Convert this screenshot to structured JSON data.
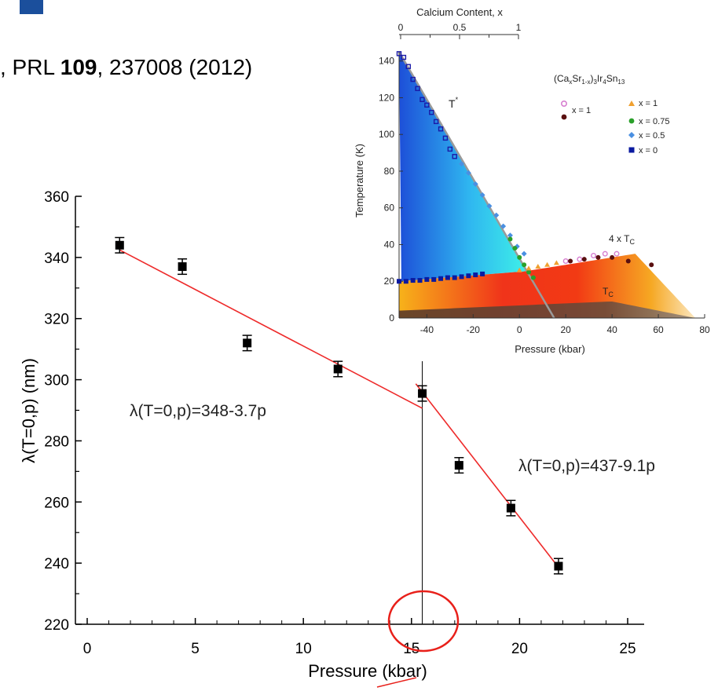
{
  "citation": {
    "prefix": ", PRL ",
    "volume": "109",
    "rest": ", 237008 (2012)"
  },
  "chart_data": [
    {
      "type": "scatter",
      "title": "",
      "xlabel": "Pressure (kbar)",
      "ylabel": "λ(T=0,p) (nm)",
      "xlim": [
        0,
        25
      ],
      "ylim": [
        220,
        360
      ],
      "xticks": [
        "0",
        "5",
        "10",
        "15",
        "20",
        "25"
      ],
      "yticks": [
        "220",
        "240",
        "260",
        "280",
        "300",
        "320",
        "340",
        "360"
      ],
      "series": [
        {
          "x": [
            1.5,
            4.4,
            7.4,
            11.6,
            15.5,
            17.2,
            19.6,
            21.8
          ],
          "y": [
            344,
            337,
            312,
            303.5,
            295.5,
            272,
            258,
            239
          ],
          "yerr": [
            2,
            2,
            2,
            2,
            2,
            2,
            2,
            2
          ]
        }
      ],
      "fits": [
        {
          "label": "λ(T=0,p)=348-3.7p",
          "x_from": 1.5,
          "x_to": 15.5,
          "intercept": 348,
          "slope": -3.7
        },
        {
          "label": "λ(T=0,p)=437-9.1p",
          "x_from": 15.2,
          "x_to": 21.8,
          "intercept": 437,
          "slope": -9.1
        }
      ],
      "vline_x": 15.5,
      "colors": {
        "points": "#000000",
        "fit": "#ee2a2a",
        "circle": "#e8201a"
      }
    },
    {
      "type": "scatter",
      "xlabel": "Pressure (kbar)",
      "ylabel": "Temperature (K)",
      "top_axis_label": "Calcium Content, x",
      "xlim": [
        -52,
        80
      ],
      "ylim": [
        0,
        145
      ],
      "xticks": [
        "-40",
        "-20",
        "0",
        "20",
        "40",
        "60",
        "80"
      ],
      "yticks": [
        "0",
        "20",
        "40",
        "60",
        "80",
        "100",
        "120",
        "140"
      ],
      "top_ticks": [
        "0",
        "0.5",
        "1"
      ],
      "annotations": {
        "tstar": "T",
        "tstar_sup": "*",
        "tc4": "4 x T",
        "tc4_sub": "C",
        "tc": "T",
        "tc_sub": "C"
      },
      "legend": {
        "compound": {
          "p1": "(Ca",
          "s1": "x",
          "p2": "Sr",
          "s2": "1-x",
          "p3": ")",
          "s3": "3",
          "p4": "Ir",
          "s4": "4",
          "p5": "Sn",
          "s5": "13"
        },
        "left": [
          {
            "label": "x = 1",
            "color": "#d77fd0",
            "marker": "open-circle"
          },
          {
            "label": "",
            "color": "#5a1010",
            "marker": "circle"
          }
        ],
        "right": [
          {
            "label": "x = 1",
            "color": "#f0a030",
            "marker": "triangle"
          },
          {
            "label": "x = 0.75",
            "color": "#2aa02a",
            "marker": "circle"
          },
          {
            "label": "x = 0.5",
            "color": "#4a90e2",
            "marker": "diamond"
          },
          {
            "label": "x = 0",
            "color": "#0a1aa0",
            "marker": "square"
          }
        ]
      },
      "series": [
        {
          "name": "x = 0",
          "color": "#1a1aa8",
          "marker": "open-square",
          "x": [
            -52,
            -50,
            -48,
            -46,
            -44,
            -42,
            -40,
            -38,
            -36,
            -34,
            -32,
            -30,
            -28
          ],
          "y": [
            144,
            142,
            137,
            130,
            125,
            119,
            116,
            112,
            107,
            103,
            98,
            92,
            88
          ]
        },
        {
          "name": "x = 0",
          "color": "#0a1aa0",
          "marker": "square",
          "x": [
            -52,
            -49,
            -46,
            -43,
            -40,
            -37,
            -34,
            -31,
            -28,
            -25,
            -22,
            -19,
            -16
          ],
          "y": [
            20,
            20,
            20.5,
            20.5,
            21,
            21,
            21.5,
            22,
            22,
            22.5,
            23,
            23.5,
            24
          ]
        },
        {
          "name": "x = 0.5",
          "color": "#4a90e2",
          "marker": "diamond",
          "x": [
            -25,
            -22,
            -19,
            -16,
            -13,
            -10,
            -7,
            -4,
            -1,
            2
          ],
          "y": [
            84,
            79,
            73,
            67,
            61,
            56,
            50,
            45,
            39,
            35
          ]
        },
        {
          "name": "x = 0.75",
          "color": "#2aa02a",
          "marker": "circle",
          "x": [
            -4,
            -2,
            0,
            2,
            4,
            6
          ],
          "y": [
            43,
            38,
            33,
            29,
            25,
            22
          ]
        },
        {
          "name": "x = 1",
          "color": "#f0a030",
          "marker": "triangle",
          "x": [
            0,
            4,
            8,
            12,
            16
          ],
          "y": [
            26,
            27,
            28,
            29,
            30
          ]
        },
        {
          "name": "x = 1",
          "color": "#d77fd0",
          "marker": "open-circle",
          "x": [
            20,
            26,
            32,
            37,
            42
          ],
          "y": [
            31,
            32,
            34,
            35,
            35
          ]
        },
        {
          "name": "",
          "color": "#5a1010",
          "marker": "circle",
          "x": [
            22,
            28,
            34,
            40,
            47,
            57
          ],
          "y": [
            31,
            32,
            33,
            33,
            31,
            29
          ]
        }
      ],
      "colors": {
        "tstar_line": "#9a9a9a",
        "axis": "#333333"
      }
    }
  ]
}
